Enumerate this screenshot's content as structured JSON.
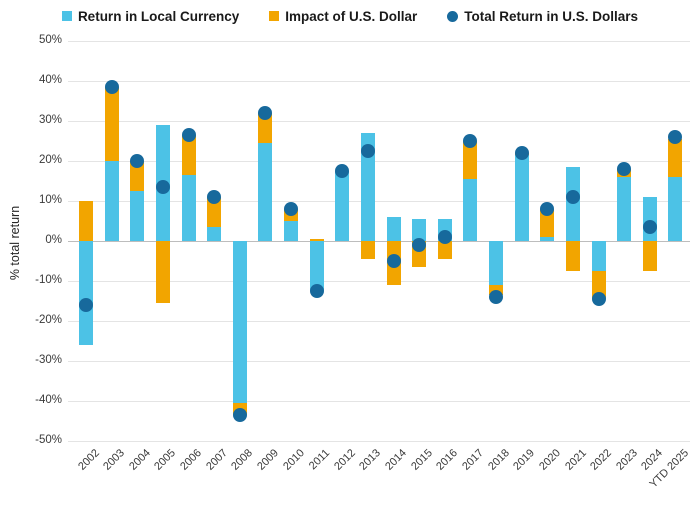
{
  "y_axis": {
    "label": "% total return",
    "ticks": [
      "50%",
      "40%",
      "30%",
      "20%",
      "10%",
      "0%",
      "-10%",
      "-20%",
      "-30%",
      "-40%",
      "-50%"
    ]
  },
  "colors": {
    "local_currency": "#4CC2E6",
    "dollar_impact": "#F2A500",
    "total_return": "#17699C",
    "gridline": "#e4e4e4",
    "zero_line": "#bdbdbd"
  },
  "chart_data": {
    "type": "bar",
    "subtype": "stacked-bars-with-total-dots",
    "title": "",
    "xlabel": "",
    "ylabel": "% total return",
    "ylim": [
      -50,
      50
    ],
    "ytick_step": 10,
    "grid": true,
    "legend_position": "top",
    "categories": [
      "2002",
      "2003",
      "2004",
      "2005",
      "2006",
      "2007",
      "2008",
      "2009",
      "2010",
      "2011",
      "2012",
      "2013",
      "2014",
      "2015",
      "2016",
      "2017",
      "2018",
      "2019",
      "2020",
      "2021",
      "2022",
      "2023",
      "2024",
      "YTD 2025"
    ],
    "series": [
      {
        "name": "Return in Local Currency",
        "color": "#4CC2E6",
        "values": [
          -26,
          20,
          12.5,
          29,
          16.5,
          3.5,
          -40.5,
          24.5,
          5,
          -12.5,
          17.5,
          27,
          6,
          5.5,
          5.5,
          15.5,
          -11,
          21.5,
          1,
          18.5,
          -7.5,
          16,
          11,
          16
        ]
      },
      {
        "name": "Impact of U.S. Dollar",
        "color": "#F2A500",
        "values": [
          10,
          18.5,
          7.5,
          -15.5,
          10,
          7.5,
          -3,
          7.5,
          3,
          0.5,
          0,
          -4.5,
          -11,
          -6.5,
          -4.5,
          9.5,
          -2.5,
          0.5,
          7,
          -7.5,
          -7,
          2,
          -7.5,
          9.5
        ]
      }
    ],
    "totals": {
      "name": "Total Return in U.S. Dollars",
      "color": "#17699C",
      "values": [
        -16,
        38.5,
        20,
        13.5,
        26.5,
        11,
        -43.5,
        32,
        8,
        -12.5,
        17.5,
        22.5,
        -5,
        -1,
        1,
        25,
        -14,
        22,
        8,
        11,
        -14.5,
        18,
        3.5,
        26
      ]
    }
  }
}
